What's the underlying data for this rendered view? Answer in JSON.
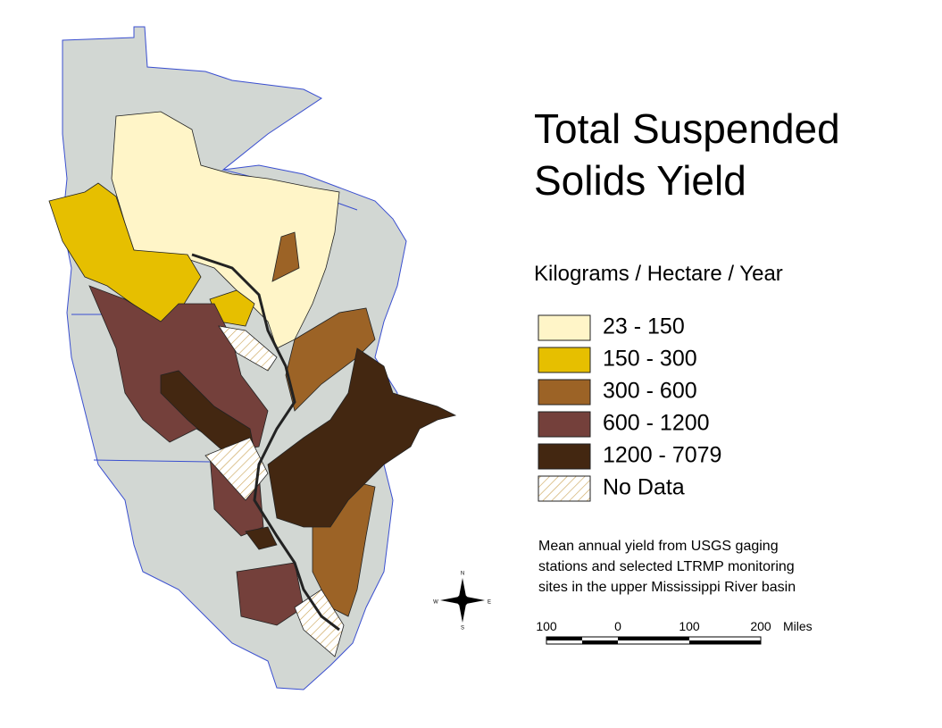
{
  "title": [
    "Total Suspended",
    "Solids Yield"
  ],
  "legend": {
    "title": "Kilograms / Hectare / Year",
    "items": [
      {
        "label": "23 - 150",
        "color": "#fff5c8"
      },
      {
        "label": "150 - 300",
        "color": "#e6bf00"
      },
      {
        "label": "300 - 600",
        "color": "#9c6326"
      },
      {
        "label": "600 - 1200",
        "color": "#74403b"
      },
      {
        "label": "1200 - 7079",
        "color": "#432711"
      },
      {
        "label": "No Data"
      }
    ]
  },
  "note": [
    "Mean annual yield from USGS gaging",
    "stations and selected LTRMP monitoring",
    "sites in the upper Mississippi River basin"
  ],
  "scale_bar": {
    "labels": [
      "100",
      "0",
      "100",
      "200"
    ],
    "unit": "Miles"
  },
  "compass": {
    "north": "N",
    "south": "S",
    "east": "E",
    "west": "W"
  }
}
